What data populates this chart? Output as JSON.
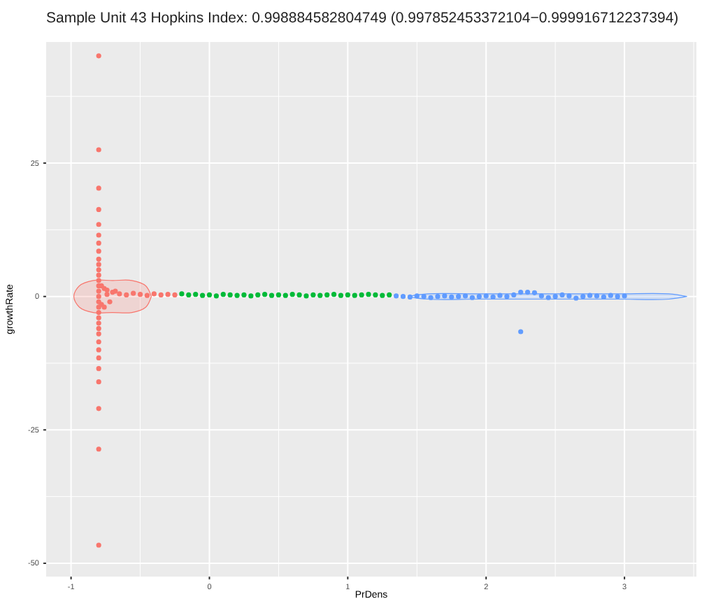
{
  "chart_data": {
    "type": "scatter",
    "title": "Sample Unit 43 Hopkins Index: 0.998884582804749 (0.997852453372104−0.999916712237394)",
    "xlabel": "PrDens",
    "ylabel": "growthRate",
    "xlim": [
      -1.18,
      3.52
    ],
    "ylim": [
      -52.5,
      47.7
    ],
    "xticks": [
      -1,
      0,
      1,
      2,
      3
    ],
    "yticks": [
      -50,
      -25,
      0,
      25
    ],
    "grid": true,
    "series": [
      {
        "marker": "circle",
        "color": "#f8766d",
        "x": [
          -0.8,
          -0.8,
          -0.8,
          -0.8,
          -0.8,
          -0.8,
          -0.8,
          -0.8,
          -0.8,
          -0.8,
          -0.8,
          -0.8,
          -0.8,
          -0.8,
          -0.8,
          -0.8,
          -0.8,
          -0.8,
          -0.8,
          -0.8,
          -0.8,
          -0.8,
          -0.8,
          -0.8,
          -0.8,
          -0.8,
          -0.8,
          -0.8,
          -0.8,
          -0.8,
          -0.8,
          -0.78,
          -0.76,
          -0.74,
          -0.72,
          -0.7,
          -0.68,
          -0.65,
          -0.6,
          -0.55,
          -0.5,
          -0.45,
          -0.4,
          -0.35,
          -0.3,
          -0.25,
          -0.78,
          -0.76,
          -0.74
        ],
        "values": [
          45.1,
          27.5,
          20.3,
          16.3,
          13.5,
          11.5,
          10,
          8.5,
          7,
          6,
          5,
          4,
          3,
          2,
          1,
          0,
          -1,
          -2,
          -3,
          -4,
          -5,
          -6,
          -7,
          -8.5,
          -10,
          -11.5,
          -13.5,
          -16,
          -21,
          -28.6,
          -46.6,
          2,
          1.5,
          1.2,
          -1,
          0.8,
          1,
          0.5,
          0.3,
          0.6,
          0.4,
          0.2,
          0.5,
          0.3,
          0.4,
          0.3,
          -1.5,
          -2,
          0.4
        ]
      },
      {
        "marker": "circle",
        "color": "#00ba38",
        "x": [
          -0.2,
          -0.15,
          -0.1,
          -0.05,
          0,
          0.05,
          0.1,
          0.15,
          0.2,
          0.25,
          0.3,
          0.35,
          0.4,
          0.45,
          0.5,
          0.55,
          0.6,
          0.65,
          0.7,
          0.75,
          0.8,
          0.85,
          0.9,
          0.95,
          1,
          1.05,
          1.1,
          1.15,
          1.2,
          1.25,
          1.3
        ],
        "values": [
          0.5,
          0.3,
          0.4,
          0.2,
          0.3,
          0.1,
          0.4,
          0.3,
          0.2,
          0.3,
          0.1,
          0.3,
          0.4,
          0.2,
          0.3,
          0.2,
          0.4,
          0.3,
          0.1,
          0.3,
          0.2,
          0.3,
          0.4,
          0.2,
          0.3,
          0.2,
          0.3,
          0.4,
          0.3,
          0.2,
          0.3
        ]
      },
      {
        "marker": "circle",
        "color": "#619cff",
        "x": [
          1.35,
          1.4,
          1.45,
          1.5,
          1.55,
          1.6,
          1.65,
          1.7,
          1.75,
          1.8,
          1.85,
          1.9,
          1.95,
          2,
          2.05,
          2.1,
          2.15,
          2.2,
          2.25,
          2.3,
          2.35,
          2.4,
          2.45,
          2.5,
          2.55,
          2.6,
          2.65,
          2.7,
          2.75,
          2.8,
          2.85,
          2.9,
          2.95,
          3,
          2.25
        ],
        "values": [
          0.1,
          0,
          -0.1,
          0.1,
          0,
          -0.2,
          0,
          0.1,
          -0.1,
          0,
          0.1,
          -0.2,
          0,
          0.1,
          -0.1,
          0.2,
          0,
          0.3,
          0.8,
          0.8,
          0.7,
          0.1,
          -0.2,
          0,
          0.3,
          0.1,
          -0.3,
          0,
          0.2,
          0.1,
          -0.1,
          0.2,
          0,
          0.1,
          -6.6
        ]
      },
      {
        "type": "area",
        "color": "#f8766d",
        "x": [
          -0.42,
          -0.46,
          -0.56,
          -0.7,
          -0.84,
          -0.94,
          -0.98,
          -0.94,
          -0.84,
          -0.7,
          -0.56,
          -0.46,
          -0.42
        ],
        "values": [
          0,
          2,
          3,
          3,
          3,
          2,
          0,
          -2,
          -3,
          -3,
          -3,
          -2,
          0
        ]
      },
      {
        "type": "area",
        "color": "#619cff",
        "x": [
          3.45,
          3.32,
          2.95,
          2.45,
          1.95,
          1.58,
          1.45,
          1.58,
          1.95,
          2.45,
          2.95,
          3.32,
          3.45
        ],
        "values": [
          0,
          0.5,
          0.5,
          0.5,
          0.5,
          0.5,
          0,
          -0.5,
          -0.5,
          -0.5,
          -0.5,
          -0.5,
          0
        ]
      }
    ]
  }
}
